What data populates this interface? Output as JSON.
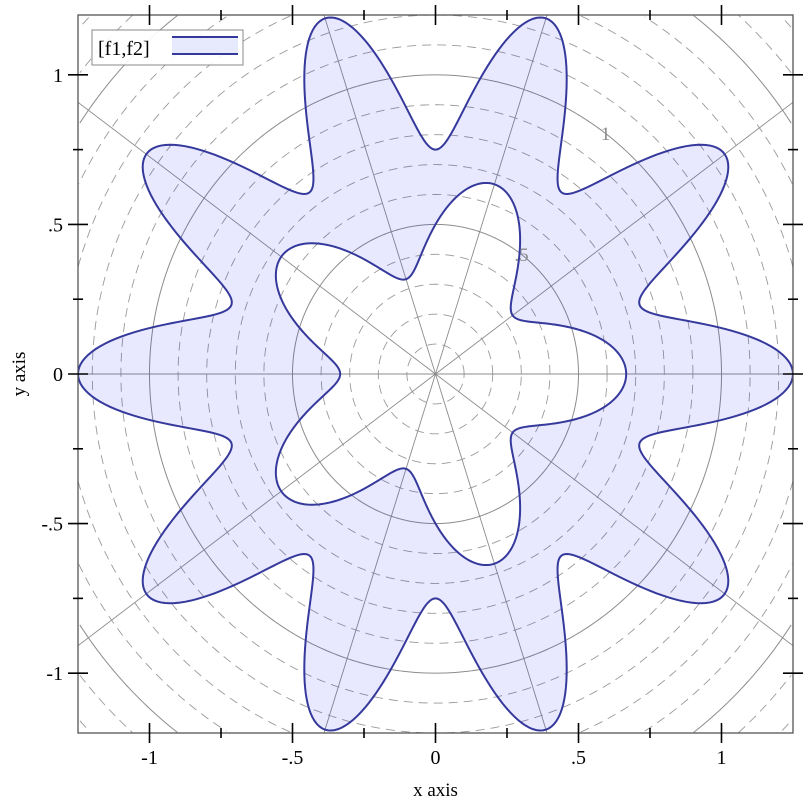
{
  "chart_data": {
    "type": "area",
    "subtype": "polar-interval",
    "title": "",
    "xlabel": "x axis",
    "ylabel": "y axis",
    "xlim": [
      -1.25,
      1.25
    ],
    "ylim": [
      -1.2,
      1.2
    ],
    "x_ticks": [
      {
        "value": -1,
        "label": "-1"
      },
      {
        "value": -0.5,
        "label": "-.5"
      },
      {
        "value": 0,
        "label": "0"
      },
      {
        "value": 0.5,
        "label": ".5"
      },
      {
        "value": 1,
        "label": "1"
      }
    ],
    "y_ticks": [
      {
        "value": -1,
        "label": "-1"
      },
      {
        "value": -0.5,
        "label": "-.5"
      },
      {
        "value": 0,
        "label": "0"
      },
      {
        "value": 0.5,
        "label": ".5"
      },
      {
        "value": 1,
        "label": "1"
      }
    ],
    "minor_ticks": [
      -0.75,
      -0.25,
      0.25,
      0.75
    ],
    "polar_grid": {
      "major_radii": [
        0.5,
        1,
        1.5
      ],
      "minor_radius_step": 0.1,
      "spoke_angle_step_deg": 36,
      "labels": [
        {
          "r": 0.5,
          "label": ".5"
        },
        {
          "r": 1,
          "label": "1"
        }
      ]
    },
    "grid": true,
    "legend": {
      "position": "top-left",
      "entries": [
        "[f1,f2]"
      ]
    },
    "series": [
      {
        "name": "[f1,f2]",
        "inner_radius": {
          "base": 0.5,
          "amplitude": 0.1667,
          "lobes": 5
        },
        "outer_radius": {
          "base": 1.0,
          "amplitude": 0.25,
          "lobes": 10
        },
        "line_color": "#35399b",
        "fill_color": "#e7e9fd"
      }
    ]
  }
}
